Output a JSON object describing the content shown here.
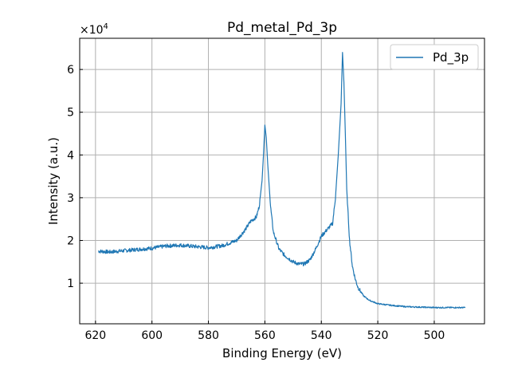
{
  "chart_data": {
    "type": "line",
    "title": "Pd_metal_Pd_3p",
    "xlabel": "Binding Energy (eV)",
    "ylabel": "Intensity (a.u.)",
    "y_scale_label": "×10",
    "y_scale_exponent": "4",
    "xlim": [
      625.6,
      482.2
    ],
    "ylim": [
      500,
      67300
    ],
    "x_inverted": true,
    "grid": true,
    "legend_position": "top-right",
    "xticks": [
      620,
      600,
      580,
      560,
      540,
      520,
      500
    ],
    "yticks": [
      10000,
      20000,
      30000,
      40000,
      50000,
      60000
    ],
    "ytick_labels": [
      "1",
      "2",
      "3",
      "4",
      "5",
      "6"
    ],
    "series": [
      {
        "name": "Pd_3p",
        "color": "#1f77b4",
        "x": [
          619,
          615,
          610,
          605,
          600,
          595,
          590,
          585,
          580,
          575,
          570,
          567,
          565,
          563,
          562,
          561,
          560.5,
          560,
          559.5,
          559,
          558,
          557,
          556,
          555,
          553,
          550,
          548,
          546,
          544,
          542,
          540,
          538,
          536,
          535,
          534,
          533,
          532.5,
          532,
          531.5,
          531,
          530,
          529,
          528,
          527,
          525,
          523,
          520,
          515,
          510,
          505,
          500,
          495,
          489
        ],
        "y": [
          17500,
          17300,
          17600,
          17900,
          18200,
          18700,
          18900,
          18600,
          18300,
          18800,
          20000,
          22500,
          24500,
          25500,
          28000,
          34000,
          40000,
          47000,
          44000,
          38000,
          28000,
          22000,
          20000,
          18000,
          16500,
          15000,
          14500,
          14500,
          15500,
          18000,
          21000,
          22500,
          24000,
          30000,
          40000,
          52000,
          64000,
          57000,
          45000,
          32000,
          20000,
          14000,
          11000,
          9000,
          7000,
          6000,
          5200,
          4800,
          4500,
          4400,
          4300,
          4300,
          4300
        ]
      }
    ]
  }
}
